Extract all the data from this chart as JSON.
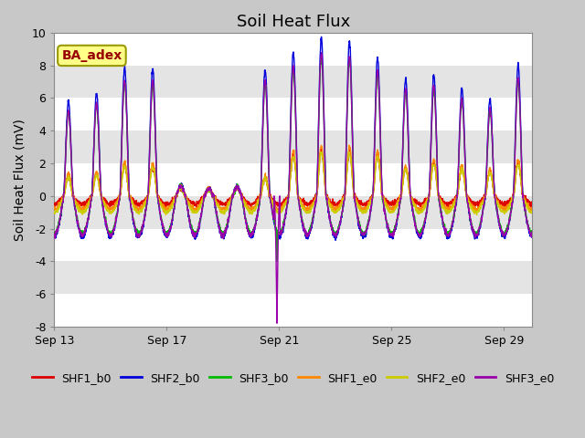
{
  "title": "Soil Heat Flux",
  "ylabel": "Soil Heat Flux (mV)",
  "ylim": [
    -8,
    10
  ],
  "xlim": [
    0,
    17
  ],
  "yticks": [
    -8,
    -6,
    -4,
    -2,
    0,
    2,
    4,
    6,
    8,
    10
  ],
  "xtick_positions": [
    0,
    4,
    8,
    12,
    16
  ],
  "xtick_labels": [
    "Sep 13",
    "Sep 17",
    "Sep 21",
    "Sep 25",
    "Sep 29"
  ],
  "series_colors": {
    "SHF1_b0": "#dd0000",
    "SHF2_b0": "#0000dd",
    "SHF3_b0": "#00bb00",
    "SHF1_e0": "#ff8800",
    "SHF2_e0": "#cccc00",
    "SHF3_e0": "#9900aa"
  },
  "series_order": [
    "SHF1_b0",
    "SHF2_b0",
    "SHF3_b0",
    "SHF1_e0",
    "SHF2_e0",
    "SHF3_e0"
  ],
  "annotation_text": "BA_adex",
  "annotation_color": "#990000",
  "annotation_bg": "#ffff88",
  "title_fontsize": 13,
  "axis_fontsize": 10,
  "legend_fontsize": 9,
  "tick_fontsize": 9,
  "figsize": [
    6.4,
    4.8
  ],
  "dpi": 100
}
